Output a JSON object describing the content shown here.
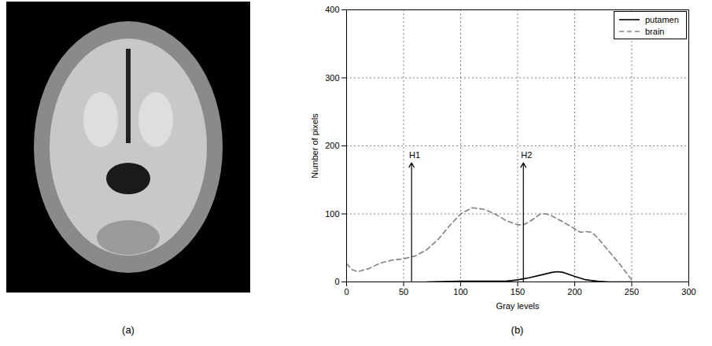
{
  "image_panel": {
    "label": "(a)"
  },
  "chart_data": {
    "type": "line",
    "panel_label": "(b)",
    "xlabel": "Gray levels",
    "ylabel": "Number of pixels",
    "xlim": [
      0,
      300
    ],
    "xticks": [
      0,
      50,
      100,
      150,
      200,
      250,
      300
    ],
    "ylim": [
      0,
      400
    ],
    "yticks": [
      0,
      100,
      200,
      300,
      400
    ],
    "grid": true,
    "legend": "upper right",
    "series": [
      {
        "name": "putamen",
        "color": "#000000",
        "line_style": "solid",
        "x": [
          70,
          100,
          140,
          150,
          160,
          170,
          180,
          185,
          190,
          200,
          210,
          220,
          230,
          250
        ],
        "values": [
          0,
          1,
          1,
          3,
          6,
          10,
          14,
          15,
          14,
          8,
          3,
          1,
          0,
          0
        ]
      },
      {
        "name": "brain",
        "color": "#808080",
        "line_style": "dashed",
        "x": [
          0,
          5,
          10,
          20,
          30,
          40,
          50,
          60,
          70,
          80,
          90,
          100,
          110,
          120,
          130,
          140,
          150,
          155,
          160,
          170,
          175,
          180,
          190,
          200,
          205,
          210,
          215,
          220,
          230,
          240,
          250
        ],
        "values": [
          27,
          18,
          15,
          20,
          28,
          32,
          34,
          38,
          47,
          62,
          82,
          100,
          109,
          107,
          100,
          90,
          84,
          84,
          88,
          100,
          100,
          97,
          88,
          78,
          73,
          74,
          73,
          65,
          45,
          25,
          3
        ]
      }
    ],
    "annotations": [
      {
        "text": "H1",
        "x": 57,
        "y": 175,
        "y_start": 0
      },
      {
        "text": "H2",
        "x": 155,
        "y": 175,
        "y_start": 0
      }
    ]
  }
}
